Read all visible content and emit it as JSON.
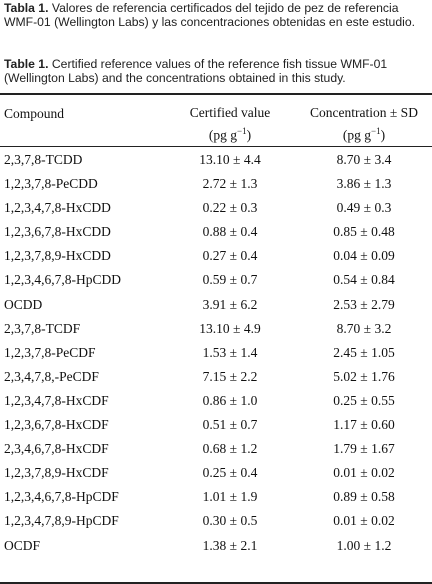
{
  "caption_es": {
    "label": "Tabla 1.",
    "text": " Valores de referencia certificados del tejido de pez de referencia WMF-01 (Wellington Labs) y las concentraciones obtenidas en este estudio."
  },
  "caption_en": {
    "label": "Table 1.",
    "text": " Certified reference values of the reference fish tissue WMF-01 (Wellington Labs) and the concentrations obtained in this study."
  },
  "table": {
    "headers": {
      "compound": "Compound",
      "certified_line1": "Certified value",
      "certified_line2": "(pg g",
      "concentration_line1": "Concentration ± SD",
      "concentration_line2": "(pg g",
      "unit_exp": "−1",
      "unit_close": ")"
    },
    "rows": [
      {
        "compound": "2,3,7,8-TCDD",
        "certified": "13.10 ± 4.4",
        "concentration": "8.70 ± 3.4"
      },
      {
        "compound": "1,2,3,7,8-PeCDD",
        "certified": "2.72 ± 1.3",
        "concentration": "3.86 ± 1.3"
      },
      {
        "compound": "1,2,3,4,7,8-HxCDD",
        "certified": "0.22 ± 0.3",
        "concentration": "0.49 ± 0.3"
      },
      {
        "compound": "1,2,3,6,7,8-HxCDD",
        "certified": "0.88 ± 0.4",
        "concentration": "0.85 ± 0.48"
      },
      {
        "compound": "1,2,3,7,8,9-HxCDD",
        "certified": "0.27 ± 0.4",
        "concentration": "0.04 ± 0.09"
      },
      {
        "compound": "1,2,3,4,6,7,8-HpCDD",
        "certified": "0.59 ± 0.7",
        "concentration": "0.54 ± 0.84"
      },
      {
        "compound": "OCDD",
        "certified": "3.91 ± 6.2",
        "concentration": "2.53 ± 2.79"
      },
      {
        "compound": "2,3,7,8-TCDF",
        "certified": "13.10 ± 4.9",
        "concentration": "8.70 ± 3.2"
      },
      {
        "compound": "1,2,3,7,8-PeCDF",
        "certified": "1.53 ± 1.4",
        "concentration": "2.45 ± 1.05"
      },
      {
        "compound": "2,3,4,7,8,-PeCDF",
        "certified": "7.15 ± 2.2",
        "concentration": "5.02 ± 1.76"
      },
      {
        "compound": "1,2,3,4,7,8-HxCDF",
        "certified": "0.86 ± 1.0",
        "concentration": "0.25 ± 0.55"
      },
      {
        "compound": "1,2,3,6,7,8-HxCDF",
        "certified": "0.51 ± 0.7",
        "concentration": "1.17 ± 0.60"
      },
      {
        "compound": "2,3,4,6,7,8-HxCDF",
        "certified": "0.68 ± 1.2",
        "concentration": "1.79 ± 1.67"
      },
      {
        "compound": "1,2,3,7,8,9-HxCDF",
        "certified": "0.25 ± 0.4",
        "concentration": "0.01 ± 0.02"
      },
      {
        "compound": "1,2,3,4,6,7,8-HpCDF",
        "certified": "1.01 ± 1.9",
        "concentration": "0.89 ± 0.58"
      },
      {
        "compound": "1,2,3,4,7,8,9-HpCDF",
        "certified": "0.30 ± 0.5",
        "concentration": "0.01 ± 0.02"
      },
      {
        "compound": "OCDF",
        "certified": "1.38 ± 2.1",
        "concentration": "1.00 ± 1.2"
      }
    ]
  }
}
